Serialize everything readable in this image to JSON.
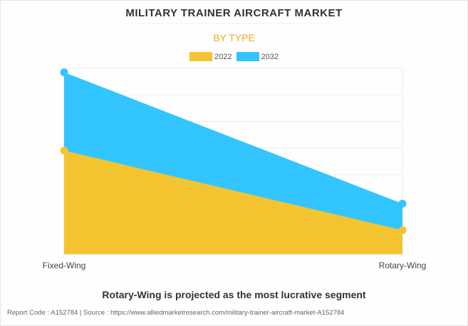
{
  "title": "MILITARY TRAINER AIRCRAFT MARKET",
  "subtitle": "BY TYPE",
  "insight": "Rotary-Wing is projected as the most lucrative segment",
  "footer": "Report Code : A152784  |  Source : https://www.alliedmarketresearch.com/military-trainer-aircraft-market-A152784",
  "chart_data": {
    "type": "area",
    "categories": [
      "Fixed-Wing",
      "Rotary-Wing"
    ],
    "series": [
      {
        "name": "2022",
        "values": [
          3.9,
          0.9
        ],
        "color": "#f4c430"
      },
      {
        "name": "2032",
        "values": [
          6.85,
          1.9
        ],
        "color": "#33c5ff"
      }
    ],
    "ylim": [
      0,
      7
    ],
    "grid": true,
    "y_tick_labels_shown": false,
    "legend": "top-center",
    "xlabel": "",
    "ylabel": ""
  }
}
